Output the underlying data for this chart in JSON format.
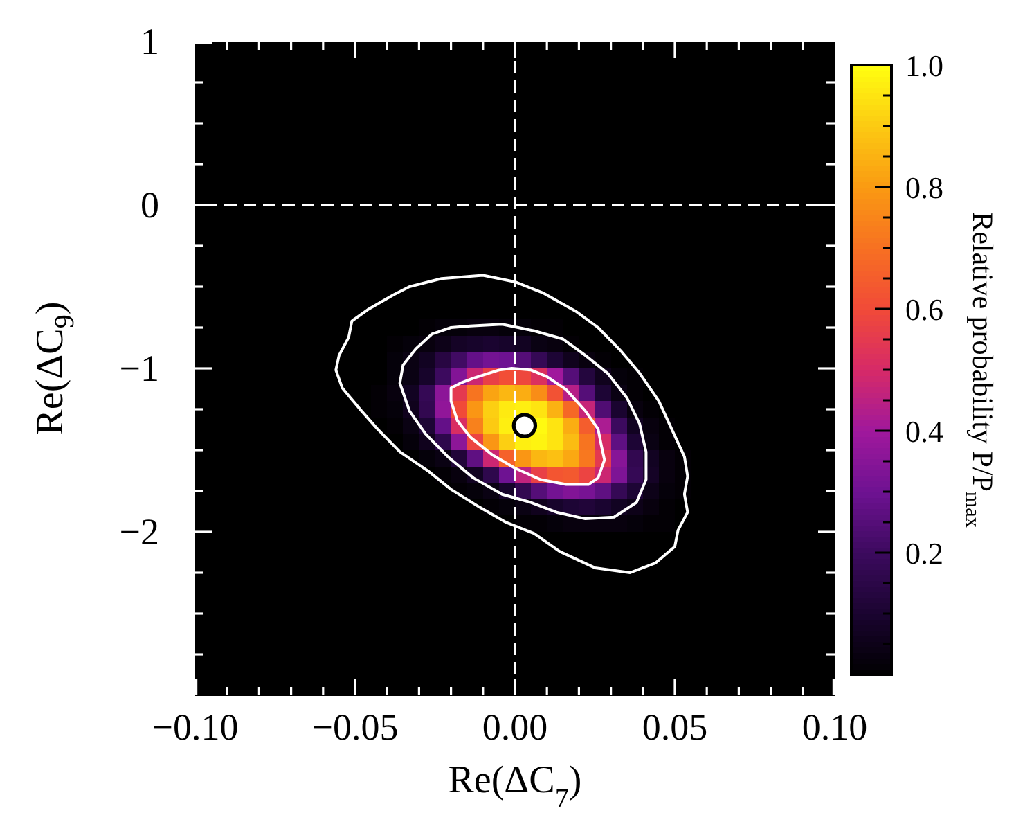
{
  "chart_data": {
    "type": "heatmap",
    "xlabel": "Re(ΔC$_{7}$)",
    "ylabel": "Re(ΔC$_{9}$)",
    "clabel": "Relative probability P/P$_{max}$",
    "xlim": [
      -0.1,
      0.1
    ],
    "ylim": [
      -3,
      1
    ],
    "xticks": [
      {
        "value": -0.1,
        "label": "−0.10"
      },
      {
        "value": -0.09,
        "label": null
      },
      {
        "value": -0.08,
        "label": null
      },
      {
        "value": -0.07,
        "label": null
      },
      {
        "value": -0.06,
        "label": null
      },
      {
        "value": -0.05,
        "label": "−0.05"
      },
      {
        "value": -0.04,
        "label": null
      },
      {
        "value": -0.03,
        "label": null
      },
      {
        "value": -0.02,
        "label": null
      },
      {
        "value": -0.01,
        "label": null
      },
      {
        "value": 0,
        "label": "0.00"
      },
      {
        "value": 0.01,
        "label": null
      },
      {
        "value": 0.02,
        "label": null
      },
      {
        "value": 0.03,
        "label": null
      },
      {
        "value": 0.04,
        "label": null
      },
      {
        "value": 0.05,
        "label": "0.05"
      },
      {
        "value": 0.06,
        "label": null
      },
      {
        "value": 0.07,
        "label": null
      },
      {
        "value": 0.08,
        "label": null
      },
      {
        "value": 0.09,
        "label": null
      },
      {
        "value": 0.1,
        "label": "0.10"
      }
    ],
    "yticks": [
      {
        "value": -2.75,
        "label": null
      },
      {
        "value": -2.5,
        "label": null
      },
      {
        "value": -2.25,
        "label": null
      },
      {
        "value": -2,
        "label": "−2"
      },
      {
        "value": -1.75,
        "label": null
      },
      {
        "value": -1.5,
        "label": null
      },
      {
        "value": -1.25,
        "label": null
      },
      {
        "value": -1,
        "label": "−1"
      },
      {
        "value": -0.75,
        "label": null
      },
      {
        "value": -0.5,
        "label": null
      },
      {
        "value": -0.25,
        "label": null
      },
      0,
      {
        "value": 0.25,
        "label": null
      },
      {
        "value": 0.5,
        "label": null
      },
      {
        "value": 0.75,
        "label": null
      },
      1
    ],
    "clim": [
      0,
      1
    ],
    "cticks": [
      {
        "value": 0.05,
        "label": null
      },
      {
        "value": 0.1,
        "label": null
      },
      {
        "value": 0.15,
        "label": null
      },
      0.2,
      {
        "value": 0.25,
        "label": null
      },
      {
        "value": 0.3,
        "label": null
      },
      {
        "value": 0.35,
        "label": null
      },
      0.4,
      {
        "value": 0.45,
        "label": null
      },
      {
        "value": 0.5,
        "label": null
      },
      {
        "value": 0.55,
        "label": null
      },
      0.6,
      {
        "value": 0.65,
        "label": null
      },
      {
        "value": 0.7,
        "label": null
      },
      {
        "value": 0.75,
        "label": null
      },
      0.8,
      {
        "value": 0.85,
        "label": null
      },
      {
        "value": 0.9,
        "label": null
      },
      {
        "value": 0.95,
        "label": null
      },
      {
        "value": 1,
        "label": "1.0"
      }
    ],
    "cells": [
      [
        0,
        0,
        0,
        0,
        0,
        0,
        0,
        0,
        0,
        0,
        0,
        0,
        0,
        0,
        0,
        0,
        0,
        0,
        0,
        0,
        0,
        0,
        0,
        0,
        0,
        0,
        0,
        0,
        0,
        0,
        0,
        0,
        0,
        0,
        0,
        0,
        0,
        0,
        0,
        0
      ],
      [
        0,
        0,
        0,
        0,
        0,
        0,
        0,
        0,
        0,
        0,
        0,
        0,
        0,
        0,
        0,
        0,
        0,
        0,
        0,
        0,
        0,
        0,
        0,
        0,
        0,
        0,
        0,
        0,
        0,
        0,
        0,
        0,
        0,
        0,
        0,
        0,
        0,
        0,
        0,
        0
      ],
      [
        0,
        0,
        0,
        0,
        0,
        0,
        0,
        0,
        0,
        0,
        0,
        0,
        0,
        0,
        0,
        0,
        0,
        0,
        0,
        0,
        0,
        0,
        0,
        0,
        0,
        0,
        0,
        0,
        0,
        0,
        0,
        0,
        0,
        0,
        0,
        0,
        0,
        0,
        0,
        0
      ],
      [
        0,
        0,
        0,
        0,
        0,
        0,
        0,
        0,
        0,
        0,
        0,
        0,
        0,
        0,
        0,
        0,
        0,
        0,
        0,
        0,
        0,
        0,
        0,
        0,
        0,
        0,
        0,
        0,
        0,
        0,
        0,
        0,
        0,
        0,
        0,
        0,
        0,
        0,
        0,
        0
      ],
      [
        0,
        0,
        0,
        0,
        0,
        0,
        0,
        0,
        0,
        0,
        0,
        0,
        0,
        0,
        0,
        0,
        0,
        0,
        0,
        0,
        0,
        0,
        0,
        0,
        0,
        0,
        0,
        0,
        0,
        0,
        0,
        0,
        0,
        0,
        0,
        0,
        0,
        0,
        0,
        0
      ],
      [
        0,
        0,
        0,
        0,
        0,
        0,
        0,
        0,
        0,
        0,
        0,
        0,
        0,
        0,
        0,
        0,
        0,
        0,
        0,
        0,
        0,
        0,
        0,
        0,
        0,
        0,
        0,
        0,
        0,
        0,
        0,
        0,
        0,
        0,
        0,
        0,
        0,
        0,
        0,
        0
      ],
      [
        0,
        0,
        0,
        0,
        0,
        0,
        0,
        0,
        0,
        0,
        0,
        0,
        0,
        0,
        0,
        0,
        0,
        0,
        0,
        0,
        0,
        0,
        0,
        0,
        0,
        0,
        0,
        0,
        0,
        0,
        0,
        0,
        0,
        0,
        0,
        0,
        0,
        0,
        0,
        0
      ],
      [
        0,
        0,
        0,
        0,
        0,
        0,
        0,
        0,
        0,
        0,
        0,
        0,
        0,
        0,
        0,
        0,
        0,
        0,
        0,
        0,
        0,
        0,
        0,
        0,
        0,
        0,
        0,
        0,
        0,
        0,
        0,
        0,
        0,
        0,
        0,
        0,
        0,
        0,
        0,
        0
      ],
      [
        0,
        0,
        0,
        0,
        0,
        0,
        0,
        0,
        0,
        0,
        0,
        0,
        0,
        0,
        0,
        0,
        0,
        0,
        0,
        0,
        0,
        0,
        0,
        0,
        0,
        0,
        0,
        0,
        0,
        0,
        0,
        0,
        0,
        0,
        0,
        0,
        0,
        0,
        0,
        0
      ],
      [
        0,
        0,
        0,
        0,
        0,
        0,
        0,
        0,
        0,
        0,
        0,
        0,
        0,
        0,
        0,
        0,
        0,
        0,
        0,
        0,
        0,
        0,
        0,
        0,
        0,
        0,
        0,
        0,
        0,
        0,
        0,
        0,
        0,
        0,
        0,
        0,
        0,
        0,
        0,
        0
      ],
      [
        0,
        0,
        0,
        0,
        0,
        0,
        0,
        0,
        0,
        0,
        0,
        0,
        0,
        0,
        0,
        0,
        0,
        0,
        0,
        0,
        0,
        0,
        0,
        0,
        0,
        0,
        0,
        0,
        0,
        0,
        0,
        0,
        0,
        0,
        0,
        0,
        0,
        0,
        0,
        0
      ],
      [
        0,
        0,
        0,
        0,
        0,
        0,
        0,
        0,
        0,
        0,
        0,
        0,
        0,
        0,
        0,
        0,
        0,
        0,
        0,
        0,
        0,
        0,
        0,
        0,
        0,
        0,
        0,
        0,
        0,
        0,
        0,
        0,
        0,
        0,
        0,
        0,
        0,
        0,
        0,
        0
      ],
      [
        0,
        0,
        0,
        0,
        0,
        0,
        0,
        0,
        0,
        0,
        0,
        0,
        0,
        0,
        0,
        0,
        0,
        0,
        0,
        0,
        0,
        0,
        0,
        0,
        0,
        0,
        0,
        0,
        0,
        0,
        0,
        0,
        0,
        0,
        0,
        0,
        0,
        0,
        0,
        0
      ],
      [
        0,
        0,
        0,
        0,
        0,
        0,
        0,
        0,
        0,
        0,
        0,
        0,
        0,
        0,
        0,
        0,
        0,
        0,
        0,
        0,
        0,
        0,
        0,
        0,
        0,
        0,
        0,
        0,
        0,
        0,
        0,
        0,
        0,
        0,
        0,
        0,
        0,
        0,
        0,
        0
      ],
      [
        0,
        0,
        0,
        0,
        0,
        0,
        0,
        0,
        0,
        0,
        0,
        0,
        0,
        0,
        0,
        0,
        0,
        0,
        0,
        0,
        0,
        0,
        0,
        0,
        0,
        0,
        0,
        0,
        0,
        0,
        0,
        0,
        0,
        0,
        0,
        0,
        0,
        0,
        0,
        0
      ],
      [
        0,
        0,
        0,
        0,
        0,
        0,
        0,
        0,
        0,
        0,
        0,
        0,
        0,
        0,
        0,
        0,
        0,
        0,
        0,
        0,
        0,
        0,
        0,
        0,
        0,
        0,
        0,
        0,
        0,
        0,
        0,
        0,
        0,
        0,
        0,
        0,
        0,
        0,
        0,
        0
      ],
      [
        0,
        0,
        0,
        0,
        0,
        0,
        0,
        0,
        0,
        0,
        0,
        0,
        0,
        0,
        0,
        0,
        0,
        0,
        0,
        0,
        0,
        0,
        0,
        0,
        0,
        0,
        0,
        0,
        0,
        0,
        0,
        0,
        0,
        0,
        0,
        0,
        0,
        0,
        0,
        0
      ],
      [
        0,
        0,
        0,
        0,
        0,
        0,
        0,
        0,
        0,
        0,
        0,
        0,
        0,
        0,
        0.01,
        0.02,
        0.02,
        0.03,
        0.03,
        0.02,
        0.02,
        0.01,
        0.01,
        0,
        0,
        0,
        0,
        0,
        0,
        0,
        0,
        0,
        0,
        0,
        0,
        0,
        0,
        0,
        0,
        0
      ],
      [
        0,
        0,
        0,
        0,
        0,
        0,
        0,
        0,
        0,
        0,
        0,
        0,
        0.01,
        0.02,
        0.03,
        0.05,
        0.08,
        0.09,
        0.1,
        0.09,
        0.07,
        0.04,
        0.03,
        0.01,
        0,
        0,
        0,
        0,
        0,
        0,
        0,
        0,
        0,
        0,
        0,
        0,
        0,
        0,
        0,
        0
      ],
      [
        0,
        0,
        0,
        0,
        0,
        0,
        0,
        0,
        0,
        0,
        0,
        0,
        0.02,
        0.04,
        0.07,
        0.14,
        0.21,
        0.28,
        0.31,
        0.3,
        0.25,
        0.18,
        0.11,
        0.06,
        0.03,
        0.01,
        0,
        0,
        0,
        0,
        0,
        0,
        0,
        0,
        0,
        0,
        0,
        0,
        0,
        0
      ],
      [
        0,
        0,
        0,
        0,
        0,
        0,
        0,
        0,
        0,
        0,
        0,
        0,
        0.02,
        0.04,
        0.09,
        0.2,
        0.34,
        0.48,
        0.57,
        0.61,
        0.59,
        0.52,
        0.4,
        0.25,
        0.13,
        0.06,
        0.02,
        0.01,
        0,
        0,
        0,
        0,
        0,
        0,
        0,
        0,
        0,
        0,
        0,
        0
      ],
      [
        0,
        0,
        0,
        0,
        0,
        0,
        0,
        0,
        0,
        0,
        0,
        0.01,
        0.03,
        0.07,
        0.18,
        0.36,
        0.55,
        0.71,
        0.82,
        0.86,
        0.84,
        0.77,
        0.62,
        0.44,
        0.25,
        0.11,
        0.04,
        0.01,
        0,
        0,
        0,
        0,
        0,
        0,
        0,
        0,
        0,
        0,
        0,
        0
      ],
      [
        0,
        0,
        0,
        0,
        0,
        0,
        0,
        0,
        0,
        0,
        0,
        0.01,
        0.02,
        0.06,
        0.17,
        0.37,
        0.6,
        0.79,
        0.91,
        0.96,
        0.97,
        0.95,
        0.85,
        0.68,
        0.47,
        0.24,
        0.1,
        0.03,
        0.01,
        0,
        0,
        0,
        0,
        0,
        0,
        0,
        0,
        0,
        0,
        0
      ],
      [
        0,
        0,
        0,
        0,
        0,
        0,
        0,
        0,
        0,
        0,
        0,
        0,
        0.01,
        0.04,
        0.11,
        0.28,
        0.51,
        0.74,
        0.9,
        0.97,
        null,
        0.99,
        0.95,
        0.84,
        0.65,
        0.42,
        0.2,
        0.07,
        0.03,
        0.01,
        0,
        0,
        0,
        0,
        0,
        0,
        0,
        0,
        0,
        0
      ],
      [
        0,
        0,
        0,
        0,
        0,
        0,
        0,
        0,
        0,
        0,
        0,
        0,
        0,
        0.02,
        0.06,
        0.16,
        0.36,
        0.58,
        0.79,
        0.91,
        0.97,
        0.98,
        0.95,
        0.87,
        0.71,
        0.5,
        0.27,
        0.11,
        0.04,
        0.01,
        0,
        0,
        0,
        0,
        0,
        0,
        0,
        0,
        0,
        0
      ],
      [
        0,
        0,
        0,
        0,
        0,
        0,
        0,
        0,
        0,
        0,
        0,
        0,
        0,
        0,
        0.02,
        0.04,
        0.12,
        0.27,
        0.48,
        0.66,
        0.79,
        0.86,
        0.88,
        0.83,
        0.72,
        0.55,
        0.35,
        0.17,
        0.07,
        0.03,
        0.01,
        0,
        0,
        0,
        0,
        0,
        0,
        0,
        0,
        0
      ],
      [
        0,
        0,
        0,
        0,
        0,
        0,
        0,
        0,
        0,
        0,
        0,
        0,
        0,
        0,
        0,
        0.01,
        0.03,
        0.07,
        0.16,
        0.3,
        0.46,
        0.57,
        0.63,
        0.64,
        0.58,
        0.48,
        0.33,
        0.18,
        0.08,
        0.03,
        0.01,
        0,
        0,
        0,
        0,
        0,
        0,
        0,
        0,
        0
      ],
      [
        0,
        0,
        0,
        0,
        0,
        0,
        0,
        0,
        0,
        0,
        0,
        0,
        0,
        0,
        0,
        0,
        0.01,
        0.02,
        0.04,
        0.09,
        0.17,
        0.25,
        0.31,
        0.34,
        0.32,
        0.27,
        0.18,
        0.11,
        0.05,
        0.02,
        0.01,
        0,
        0,
        0,
        0,
        0,
        0,
        0,
        0,
        0
      ],
      [
        0,
        0,
        0,
        0,
        0,
        0,
        0,
        0,
        0,
        0,
        0,
        0,
        0,
        0,
        0,
        0,
        0,
        0,
        0.01,
        0.02,
        0.04,
        0.06,
        0.09,
        0.11,
        0.12,
        0.1,
        0.07,
        0.05,
        0.03,
        0.01,
        0,
        0,
        0,
        0,
        0,
        0,
        0,
        0,
        0,
        0
      ],
      [
        0,
        0,
        0,
        0,
        0,
        0,
        0,
        0,
        0,
        0,
        0,
        0,
        0,
        0,
        0,
        0,
        0,
        0,
        0,
        0,
        0.01,
        0.01,
        0.02,
        0.03,
        0.03,
        0.03,
        0.03,
        0.02,
        0.01,
        0.01,
        0,
        0,
        0,
        0,
        0,
        0,
        0,
        0,
        0,
        0
      ],
      [
        0,
        0,
        0,
        0,
        0,
        0,
        0,
        0,
        0,
        0,
        0,
        0,
        0,
        0,
        0,
        0,
        0,
        0,
        0,
        0,
        0,
        0,
        0,
        0,
        0,
        0,
        0,
        0,
        0,
        0,
        0,
        0,
        0,
        0,
        0,
        0,
        0,
        0,
        0,
        0
      ],
      [
        0,
        0,
        0,
        0,
        0,
        0,
        0,
        0,
        0,
        0,
        0,
        0,
        0,
        0,
        0,
        0,
        0,
        0,
        0,
        0,
        0,
        0,
        0,
        0,
        0,
        0,
        0,
        0,
        0,
        0,
        0,
        0,
        0,
        0,
        0,
        0,
        0,
        0,
        0,
        0
      ],
      [
        0,
        0,
        0,
        0,
        0,
        0,
        0,
        0,
        0,
        0,
        0,
        0,
        0,
        0,
        0,
        0,
        0,
        0,
        0,
        0,
        0,
        0,
        0,
        0,
        0,
        0,
        0,
        0,
        0,
        0,
        0,
        0,
        0,
        0,
        0,
        0,
        0,
        0,
        0,
        0
      ],
      [
        0,
        0,
        0,
        0,
        0,
        0,
        0,
        0,
        0,
        0,
        0,
        0,
        0,
        0,
        0,
        0,
        0,
        0,
        0,
        0,
        0,
        0,
        0,
        0,
        0,
        0,
        0,
        0,
        0,
        0,
        0,
        0,
        0,
        0,
        0,
        0,
        0,
        0,
        0,
        0
      ],
      [
        0,
        0,
        0,
        0,
        0,
        0,
        0,
        0,
        0,
        0,
        0,
        0,
        0,
        0,
        0,
        0,
        0,
        0,
        0,
        0,
        0,
        0,
        0,
        0,
        0,
        0,
        0,
        0,
        0,
        0,
        0,
        0,
        0,
        0,
        0,
        0,
        0,
        0,
        0,
        0
      ],
      [
        0,
        0,
        0,
        0,
        0,
        0,
        0,
        0,
        0,
        0,
        0,
        0,
        0,
        0,
        0,
        0,
        0,
        0,
        0,
        0,
        0,
        0,
        0,
        0,
        0,
        0,
        0,
        0,
        0,
        0,
        0,
        0,
        0,
        0,
        0,
        0,
        0,
        0,
        0,
        0
      ],
      [
        0,
        0,
        0,
        0,
        0,
        0,
        0,
        0,
        0,
        0,
        0,
        0,
        0,
        0,
        0,
        0,
        0,
        0,
        0,
        0,
        0,
        0,
        0,
        0,
        0,
        0,
        0,
        0,
        0,
        0,
        0,
        0,
        0,
        0,
        0,
        0,
        0,
        0,
        0,
        0
      ],
      [
        0,
        0,
        0,
        0,
        0,
        0,
        0,
        0,
        0,
        0,
        0,
        0,
        0,
        0,
        0,
        0,
        0,
        0,
        0,
        0,
        0,
        0,
        0,
        0,
        0,
        0,
        0,
        0,
        0,
        0,
        0,
        0,
        0,
        0,
        0,
        0,
        0,
        0,
        0,
        0
      ],
      [
        0,
        0,
        0,
        0,
        0,
        0,
        0,
        0,
        0,
        0,
        0,
        0,
        0,
        0,
        0,
        0,
        0,
        0,
        0,
        0,
        0,
        0,
        0,
        0,
        0,
        0,
        0,
        0,
        0,
        0,
        0,
        0,
        0,
        0,
        0,
        0,
        0,
        0,
        0,
        0
      ],
      [
        0,
        0,
        0,
        0,
        0,
        0,
        0,
        0,
        0,
        0,
        0,
        0,
        0,
        0,
        0,
        0,
        0,
        0,
        0,
        0,
        0,
        0,
        0,
        0,
        0,
        0,
        0,
        0,
        0,
        0,
        0,
        0,
        0,
        0,
        0,
        0,
        0,
        0,
        0,
        0
      ]
    ],
    "ref_lines": [
      {
        "axis": "x",
        "value": 0,
        "color": "#ffffff",
        "line_style": "dashed"
      },
      {
        "axis": "y",
        "value": 0,
        "color": "#ffffff",
        "line_style": "dashed"
      }
    ],
    "series": [
      {
        "type": "scatter",
        "color": "#ffffff",
        "marker": "circle",
        "x": [
          0.003
        ],
        "values": [
          -1.35
        ]
      }
    ]
  }
}
